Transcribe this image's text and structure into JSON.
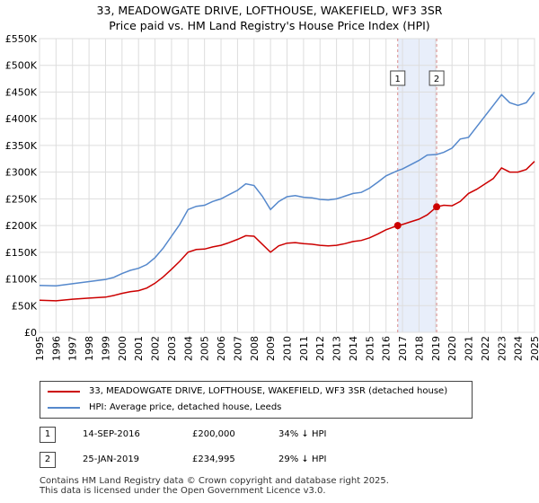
{
  "title_line1": "33, MEADOWGATE DRIVE, LOFTHOUSE, WAKEFIELD, WF3 3SR",
  "title_line2": "Price paid vs. HM Land Registry's House Price Index (HPI)",
  "chart_data": {
    "type": "line",
    "title": "33, MEADOWGATE DRIVE, LOFTHOUSE, WAKEFIELD, WF3 3SR — Price paid vs. HM Land Registry's House Price Index (HPI)",
    "xlabel": "",
    "ylabel": "",
    "xlim": [
      1995,
      2025
    ],
    "ylim": [
      0,
      550000
    ],
    "x_ticks": [
      1995,
      1996,
      1997,
      1998,
      1999,
      2000,
      2001,
      2002,
      2003,
      2004,
      2005,
      2006,
      2007,
      2008,
      2009,
      2010,
      2011,
      2012,
      2013,
      2014,
      2015,
      2016,
      2017,
      2018,
      2019,
      2020,
      2021,
      2022,
      2023,
      2024,
      2025
    ],
    "y_ticks": [
      {
        "value": 0,
        "label": "£0"
      },
      {
        "value": 50000,
        "label": "£50K"
      },
      {
        "value": 100000,
        "label": "£100K"
      },
      {
        "value": 150000,
        "label": "£150K"
      },
      {
        "value": 200000,
        "label": "£200K"
      },
      {
        "value": 250000,
        "label": "£250K"
      },
      {
        "value": 300000,
        "label": "£300K"
      },
      {
        "value": 350000,
        "label": "£350K"
      },
      {
        "value": 400000,
        "label": "£400K"
      },
      {
        "value": 450000,
        "label": "£450K"
      },
      {
        "value": 500000,
        "label": "£500K"
      },
      {
        "value": 550000,
        "label": "£550K"
      }
    ],
    "grid": true,
    "shaded_period": {
      "start": 2016.71,
      "end": 2019.07
    },
    "series": [
      {
        "name": "33, MEADOWGATE DRIVE, LOFTHOUSE, WAKEFIELD, WF3 3SR (detached house)",
        "color": "#cc0000",
        "x": [
          1995,
          1996,
          1997,
          1998,
          1999,
          1999.5,
          2000,
          2000.5,
          2001,
          2001.5,
          2002,
          2002.5,
          2003,
          2003.5,
          2004,
          2004.5,
          2005,
          2005.5,
          2006,
          2006.5,
          2007,
          2007.5,
          2008,
          2008.5,
          2009,
          2009.5,
          2010,
          2010.5,
          2011,
          2011.5,
          2012,
          2012.5,
          2013,
          2013.5,
          2014,
          2014.5,
          2015,
          2015.5,
          2016,
          2016.71,
          2017,
          2017.5,
          2018,
          2018.5,
          2019.07,
          2019.5,
          2020,
          2020.5,
          2021,
          2021.5,
          2022,
          2022.5,
          2023,
          2023.5,
          2024,
          2024.5,
          2025
        ],
        "y": [
          60000,
          59000,
          62000,
          64000,
          66000,
          69000,
          73000,
          76000,
          78000,
          83000,
          92000,
          104000,
          118000,
          133000,
          150000,
          155000,
          156000,
          160000,
          163000,
          168000,
          174000,
          181000,
          180000,
          165000,
          150000,
          162000,
          167000,
          168000,
          166000,
          165000,
          163000,
          162000,
          163000,
          166000,
          170000,
          172000,
          177000,
          184000,
          192000,
          200000,
          202000,
          207000,
          212000,
          220000,
          234995,
          238000,
          237000,
          245000,
          260000,
          268000,
          278000,
          288000,
          308000,
          300000,
          300000,
          305000,
          320000
        ]
      },
      {
        "name": "HPI: Average price, detached house, Leeds",
        "color": "#5588cc",
        "x": [
          1995,
          1996,
          1997,
          1998,
          1999,
          1999.5,
          2000,
          2000.5,
          2001,
          2001.5,
          2002,
          2002.5,
          2003,
          2003.5,
          2004,
          2004.5,
          2005,
          2005.5,
          2006,
          2006.5,
          2007,
          2007.5,
          2008,
          2008.5,
          2009,
          2009.5,
          2010,
          2010.5,
          2011,
          2011.5,
          2012,
          2012.5,
          2013,
          2013.5,
          2014,
          2014.5,
          2015,
          2015.5,
          2016,
          2016.71,
          2017,
          2017.5,
          2018,
          2018.5,
          2019.07,
          2019.5,
          2020,
          2020.5,
          2021,
          2021.5,
          2022,
          2022.5,
          2023,
          2023.5,
          2024,
          2024.5,
          2025
        ],
        "y": [
          88000,
          87000,
          91000,
          95000,
          99000,
          103000,
          110000,
          116000,
          120000,
          127000,
          140000,
          158000,
          180000,
          202000,
          230000,
          236000,
          238000,
          245000,
          250000,
          258000,
          266000,
          278000,
          275000,
          255000,
          230000,
          245000,
          254000,
          256000,
          253000,
          252000,
          249000,
          248000,
          250000,
          255000,
          260000,
          262000,
          270000,
          281000,
          293000,
          303000,
          306000,
          314000,
          322000,
          332000,
          333000,
          337000,
          345000,
          362000,
          365000,
          385000,
          405000,
          425000,
          445000,
          430000,
          425000,
          430000,
          450000
        ]
      }
    ],
    "markers": [
      {
        "label": "1",
        "x": 2016.71,
        "y": 200000,
        "color": "#cc0000"
      },
      {
        "label": "2",
        "x": 2019.07,
        "y": 234995,
        "color": "#cc0000"
      }
    ]
  },
  "legend": {
    "items": [
      {
        "label": "33, MEADOWGATE DRIVE, LOFTHOUSE, WAKEFIELD, WF3 3SR (detached house)",
        "color": "#cc0000"
      },
      {
        "label": "HPI: Average price, detached house, Leeds",
        "color": "#5588cc"
      }
    ]
  },
  "transactions": [
    {
      "num": "1",
      "date": "14-SEP-2016",
      "price": "£200,000",
      "hpi": "34% ↓ HPI"
    },
    {
      "num": "2",
      "date": "25-JAN-2019",
      "price": "£234,995",
      "hpi": "29% ↓ HPI"
    }
  ],
  "footer": {
    "line1": "Contains HM Land Registry data © Crown copyright and database right 2025.",
    "line2": "This data is licensed under the Open Government Licence v3.0."
  }
}
